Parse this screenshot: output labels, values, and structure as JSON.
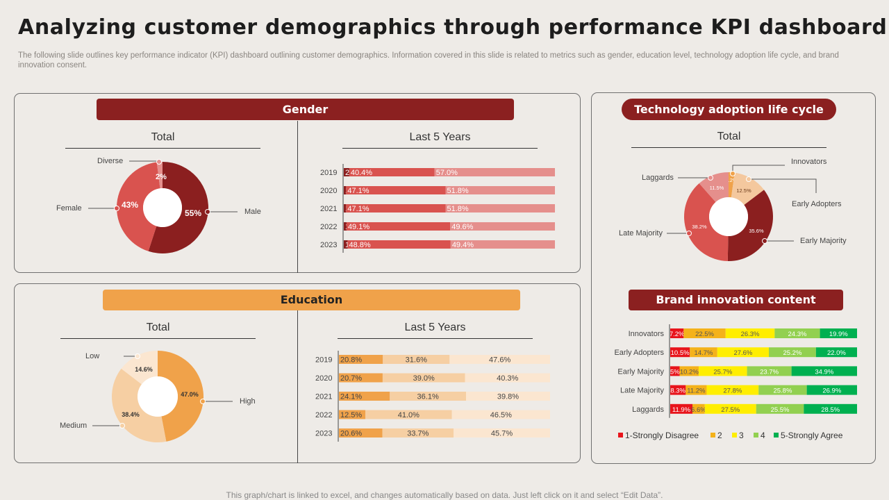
{
  "title": "Analyzing customer demographics through performance KPI dashboard",
  "subtitle": "The following slide outlines key performance indicator (KPI) dashboard outlining customer demographics. Information covered in this slide is related to metrics such as gender, education level, technology adoption life cycle, and brand innovation consent.",
  "footer": "This graph/chart is linked to excel,  and changes automatically based on data. Just left click on it and select “Edit Data”.",
  "colors": {
    "dark_red": "#8b1f1f",
    "red": "#d9534f",
    "pink": "#e58f8c",
    "light_pink": "#efc6b9",
    "orange": "#f0a24a",
    "peach": "#f6cfa3",
    "cream": "#fbe6d0",
    "tan": "#f4c89e",
    "strongly_disagree": "#e8141b",
    "two": "#f4b21a",
    "three": "#ffee00",
    "four": "#92d050",
    "five": "#00b050"
  },
  "gender": {
    "header": "Gender",
    "total_title": "Total",
    "last5_title": "Last 5 Years",
    "callouts": {
      "diverse": "Diverse",
      "female": "Female",
      "male": "Male"
    }
  },
  "education": {
    "header": "Education",
    "total_title": "Total",
    "last5_title": "Last 5 Years",
    "callouts": {
      "low": "Low",
      "medium": "Medium",
      "high": "High"
    }
  },
  "tech": {
    "header": "Technology adoption life cycle",
    "total_title": "Total",
    "callouts": {
      "innovators": "Innovators",
      "early_adopters": "Early Adopters",
      "early_majority": "Early Majority",
      "late_majority": "Late Majority",
      "laggards": "Laggards"
    }
  },
  "brand": {
    "header": "Brand innovation  content"
  },
  "chart_data": [
    {
      "id": "gender_total",
      "type": "pie",
      "title": "Total",
      "slices": [
        {
          "label": "Male",
          "value": 55,
          "display": "55%",
          "color": "#8b1f1f"
        },
        {
          "label": "Female",
          "value": 43,
          "display": "43%",
          "color": "#d9534f"
        },
        {
          "label": "Diverse",
          "value": 2,
          "display": "2%",
          "color": "#e58f8c"
        }
      ]
    },
    {
      "id": "gender_last5",
      "type": "bar",
      "stacked": true,
      "orientation": "horizontal",
      "title": "Last 5 Years",
      "categories": [
        "2019",
        "2020",
        "2021",
        "2022",
        "2023"
      ],
      "series": [
        {
          "name": "Diverse",
          "color": "#8b1f1f",
          "values": [
            2.6,
            1.1,
            1.1,
            1.3,
            1.8
          ],
          "labels": [
            "2.6%",
            "1.1%",
            "1.1%",
            "1.3%",
            "1.8%"
          ]
        },
        {
          "name": "Female",
          "color": "#d9534f",
          "values": [
            40.4,
            47.1,
            47.1,
            49.1,
            48.8
          ],
          "labels": [
            "40.4%",
            "47.1%",
            "47.1%",
            "49.1%",
            "48.8%"
          ]
        },
        {
          "name": "Male",
          "color": "#e58f8c",
          "values": [
            57.0,
            51.8,
            51.8,
            49.6,
            49.4
          ],
          "labels": [
            "57.0%",
            "51.8%",
            "51.8%",
            "49.6%",
            "49.4%"
          ]
        }
      ]
    },
    {
      "id": "education_total",
      "type": "pie",
      "title": "Total",
      "slices": [
        {
          "label": "High",
          "value": 47.0,
          "display": "47.0%",
          "color": "#f0a24a"
        },
        {
          "label": "Medium",
          "value": 38.4,
          "display": "38.4%",
          "color": "#f6cfa3"
        },
        {
          "label": "Low",
          "value": 14.6,
          "display": "14.6%",
          "color": "#fbe6d0"
        }
      ]
    },
    {
      "id": "education_last5",
      "type": "bar",
      "stacked": true,
      "orientation": "horizontal",
      "title": "Last 5 Years",
      "categories": [
        "2019",
        "2020",
        "2021",
        "2022",
        "2023"
      ],
      "series": [
        {
          "name": "High",
          "color": "#f0a24a",
          "values": [
            20.8,
            20.7,
            24.1,
            12.5,
            20.6
          ],
          "labels": [
            "20.8%",
            "20.7%",
            "24.1%",
            "12.5%",
            "20.6%"
          ]
        },
        {
          "name": "Medium",
          "color": "#f6cfa3",
          "values": [
            31.6,
            39.0,
            36.1,
            41.0,
            33.7
          ],
          "labels": [
            "31.6%",
            "39.0%",
            "36.1%",
            "41.0%",
            "33.7%"
          ]
        },
        {
          "name": "Low",
          "color": "#fbe6d0",
          "values": [
            47.6,
            40.3,
            39.8,
            46.5,
            45.7
          ],
          "labels": [
            "47.6%",
            "40.3%",
            "39.8%",
            "46.5%",
            "45.7%"
          ]
        }
      ]
    },
    {
      "id": "tech_total",
      "type": "pie",
      "title": "Total",
      "slices": [
        {
          "label": "Innovators",
          "value": 2.2,
          "display": "2.2%",
          "color": "#f0a24a"
        },
        {
          "label": "Early Adopters",
          "value": 12.5,
          "display": "12.5%",
          "color": "#f4c89e"
        },
        {
          "label": "Early Majority",
          "value": 35.6,
          "display": "35.6%",
          "color": "#8b1f1f"
        },
        {
          "label": "Late Majority",
          "value": 38.2,
          "display": "38.2%",
          "color": "#d9534f"
        },
        {
          "label": "Laggards",
          "value": 11.5,
          "display": "11.5%",
          "color": "#e58f8c"
        }
      ]
    },
    {
      "id": "brand_innovation",
      "type": "bar",
      "stacked": true,
      "orientation": "horizontal",
      "title": "Brand innovation  content",
      "categories": [
        "Innovators",
        "Early Adopters",
        "Early Majority",
        "Late Majority",
        "Laggards"
      ],
      "legend": "bottom",
      "series": [
        {
          "name": "1-Strongly Disagree",
          "color": "#e8141b",
          "values": [
            7.2,
            10.5,
            5.0,
            8.3,
            11.9
          ],
          "labels": [
            "7.2%",
            "10.5%",
            "5%",
            "8.3%",
            "11.9%"
          ]
        },
        {
          "name": "2",
          "color": "#f4b21a",
          "values": [
            22.5,
            14.7,
            10.2,
            11.2,
            6.6
          ],
          "labels": [
            "22.5%",
            "14.7%",
            "10.2%",
            "11.2%",
            "6.6%"
          ]
        },
        {
          "name": "3",
          "color": "#ffee00",
          "values": [
            26.3,
            27.6,
            25.7,
            27.8,
            27.5
          ],
          "labels": [
            "26.3%",
            "27.6%",
            "25.7%",
            "27.8%",
            "27.5%"
          ]
        },
        {
          "name": "4",
          "color": "#92d050",
          "values": [
            24.3,
            25.2,
            23.7,
            25.8,
            25.5
          ],
          "labels": [
            "24.3%",
            "25.2%",
            "23.7%",
            "25.8%",
            "25.5%"
          ]
        },
        {
          "name": "5-Strongly Agree",
          "color": "#00b050",
          "values": [
            19.9,
            22.0,
            34.9,
            26.9,
            28.5
          ],
          "labels": [
            "19.9%",
            "22.0%",
            "34.9%",
            "26.9%",
            "28.5%"
          ]
        }
      ]
    }
  ]
}
